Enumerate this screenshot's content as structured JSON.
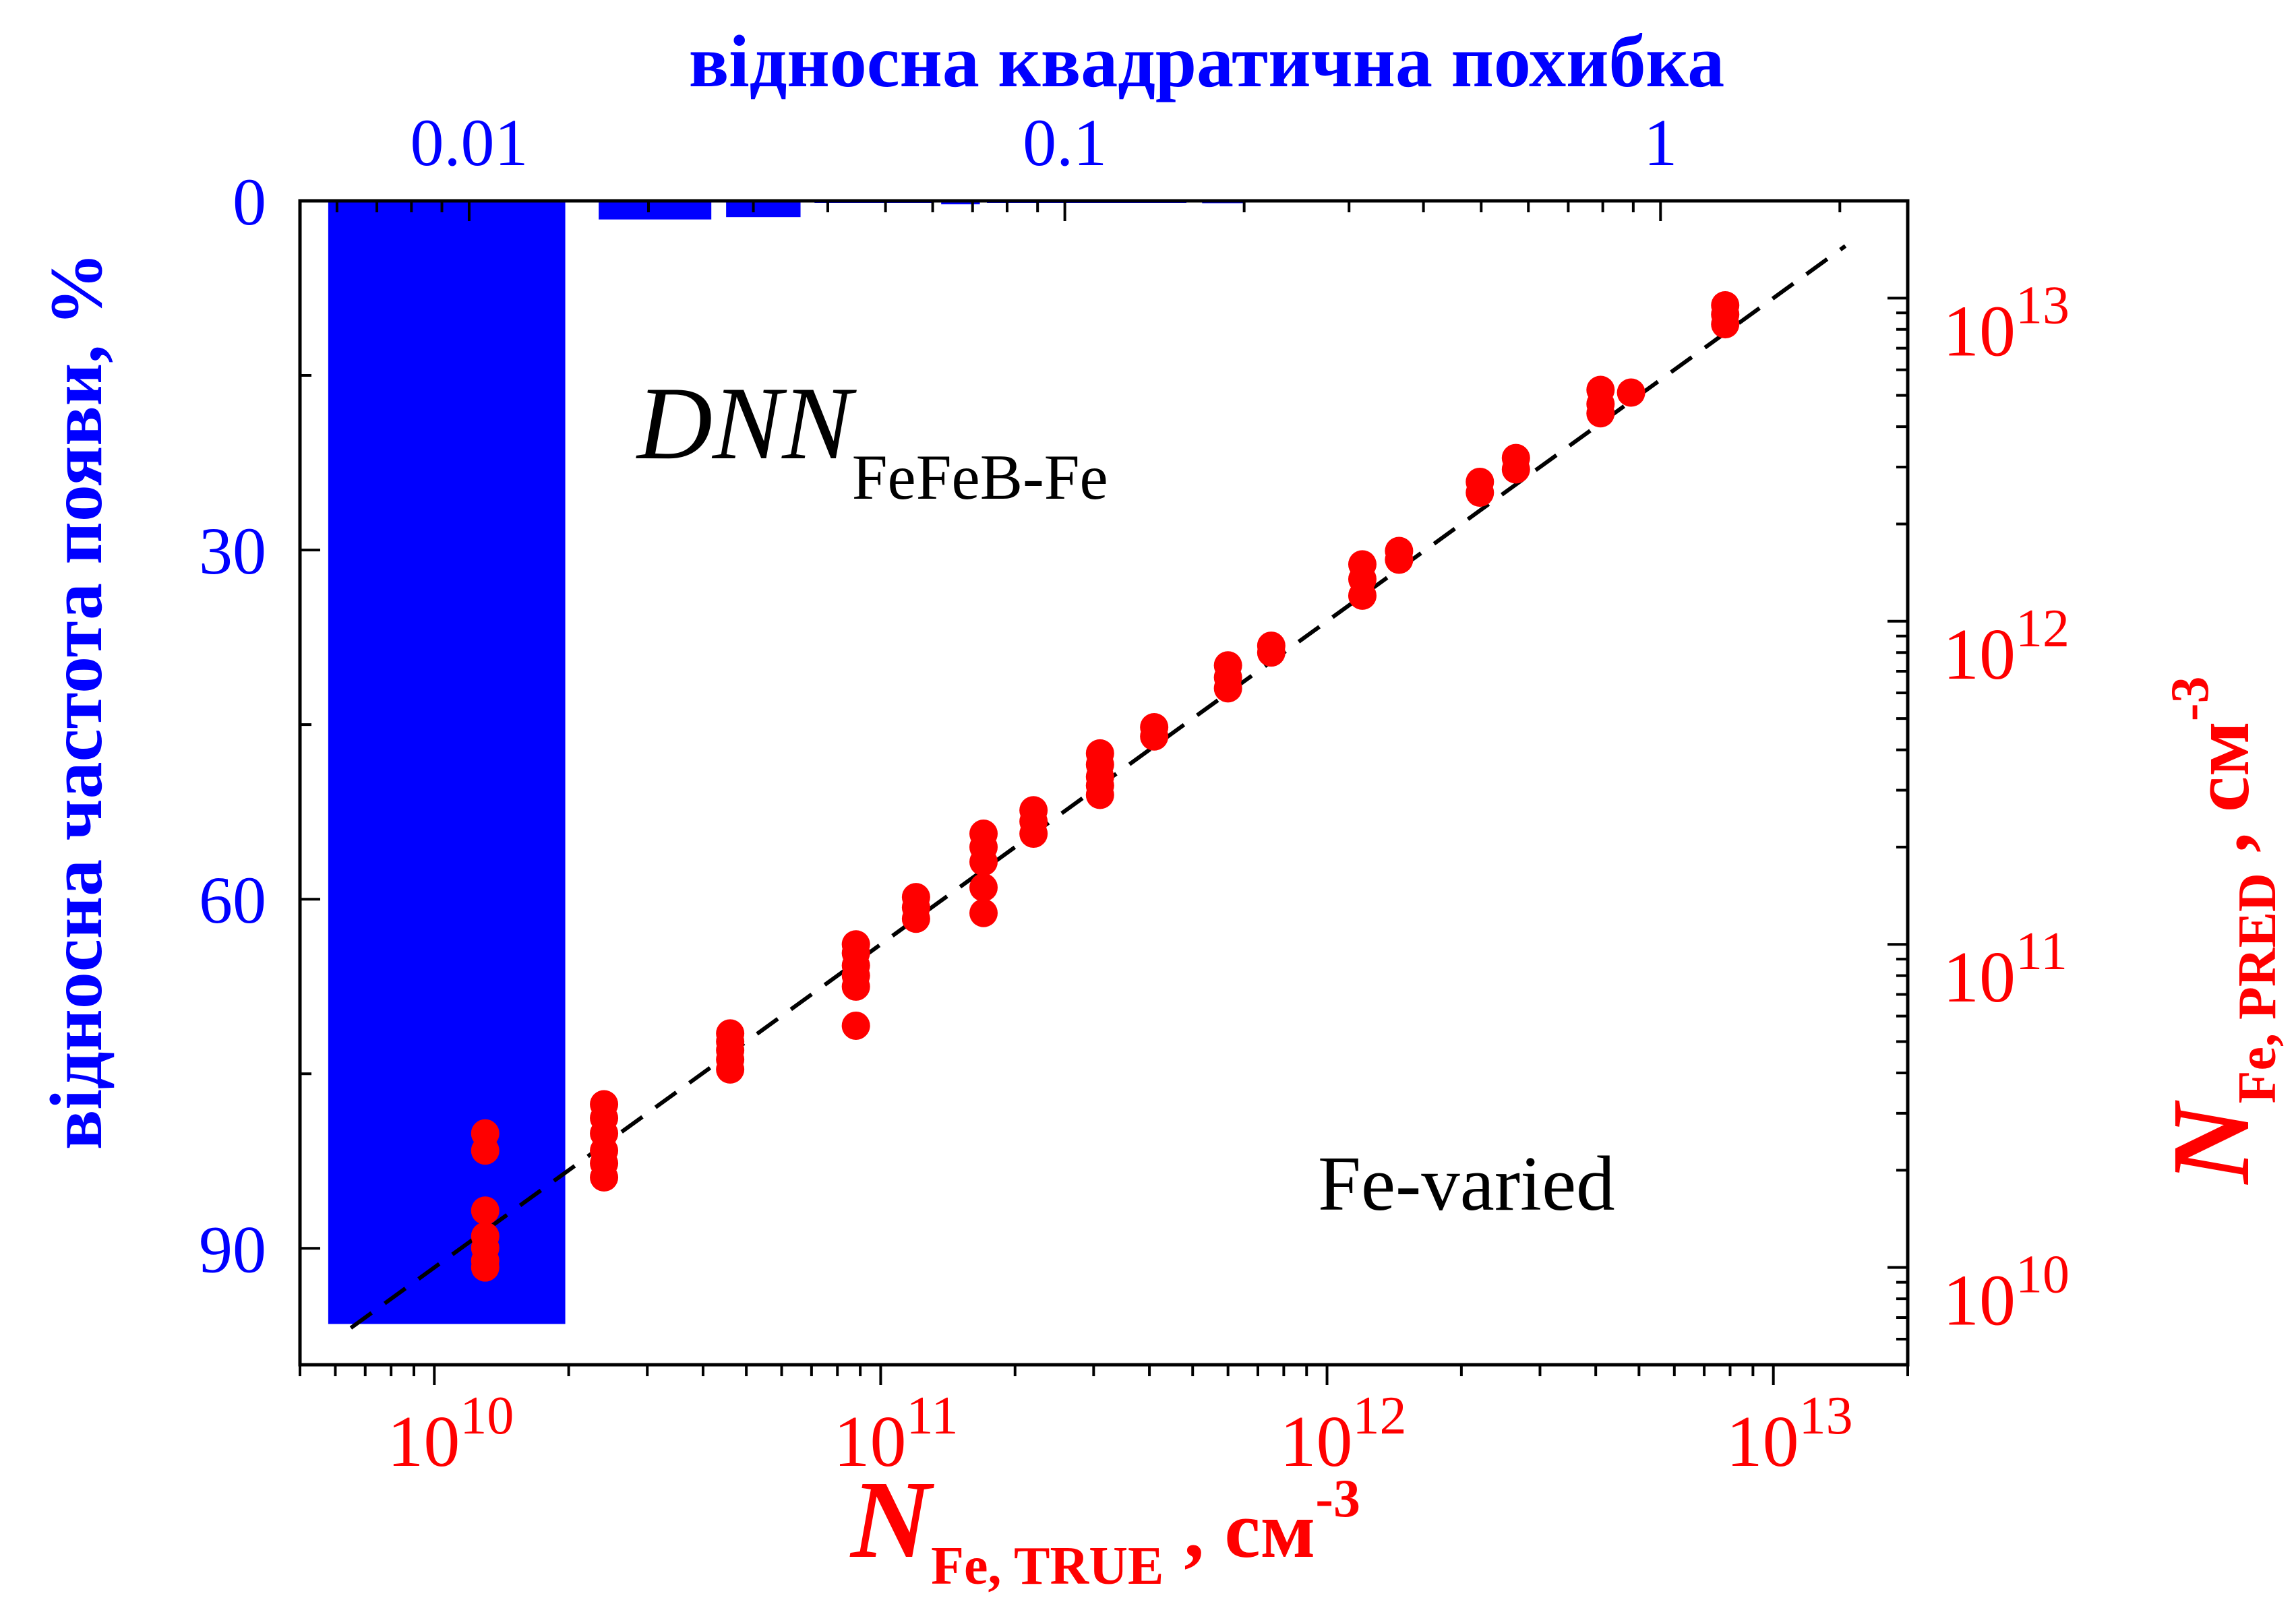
{
  "chart_data": {
    "type": "scatter",
    "series": [
      {
        "type": "scatter",
        "color": "#ff0000",
        "points": [
          {
            "x": 13000000000.0,
            "y": [
              26000000000.0,
              23000000000.0,
              15000000000.0,
              12500000000.0,
              11500000000.0,
              10500000000.0,
              10000000000.0
            ]
          },
          {
            "x": 24000000000.0,
            "y": [
              32000000000.0,
              29000000000.0,
              26000000000.0,
              23000000000.0,
              21000000000.0,
              19000000000.0
            ]
          },
          {
            "x": 46000000000.0,
            "y": [
              53000000000.0,
              50000000000.0,
              47000000000.0,
              44000000000.0,
              41000000000.0
            ]
          },
          {
            "x": 88000000000.0,
            "y": [
              100000000000.0,
              94000000000.0,
              86000000000.0,
              80000000000.0,
              74000000000.0,
              56000000000.0
            ]
          },
          {
            "x": 120000000000.0,
            "y": [
              140000000000.0,
              130000000000.0,
              120000000000.0
            ]
          },
          {
            "x": 170000000000.0,
            "y": [
              220000000000.0,
              200000000000.0,
              180000000000.0,
              150000000000.0,
              125000000000.0
            ]
          },
          {
            "x": 220000000000.0,
            "y": [
              260000000000.0,
              240000000000.0,
              220000000000.0
            ]
          },
          {
            "x": 310000000000.0,
            "y": [
              390000000000.0,
              360000000000.0,
              330000000000.0,
              310000000000.0,
              290000000000.0
            ]
          },
          {
            "x": 410000000000.0,
            "y": [
              470000000000.0,
              440000000000.0
            ]
          },
          {
            "x": 600000000000.0,
            "y": [
              730000000000.0,
              670000000000.0,
              620000000000.0
            ]
          },
          {
            "x": 750000000000.0,
            "y": [
              840000000000.0,
              800000000000.0
            ]
          },
          {
            "x": 1200000000000.0,
            "y": [
              1500000000000.0,
              1350000000000.0,
              1200000000000.0
            ]
          },
          {
            "x": 1450000000000.0,
            "y": [
              1650000000000.0,
              1550000000000.0
            ]
          },
          {
            "x": 2200000000000.0,
            "y": [
              2700000000000.0,
              2500000000000.0
            ]
          },
          {
            "x": 2650000000000.0,
            "y": [
              3200000000000.0,
              2950000000000.0
            ]
          },
          {
            "x": 4100000000000.0,
            "y": [
              5200000000000.0,
              4700000000000.0,
              4400000000000.0
            ]
          },
          {
            "x": 4800000000000.0,
            "y": [
              5100000000000.0
            ]
          },
          {
            "x": 7800000000000.0,
            "y": [
              9500000000000.0,
              8900000000000.0,
              8300000000000.0
            ]
          }
        ]
      },
      {
        "type": "line",
        "style": "dashed",
        "color": "#000000",
        "x": [
          6500000000.0,
          14500000000000.0
        ],
        "y": [
          6500000000.0,
          14500000000000.0
        ]
      },
      {
        "type": "bar",
        "axes": "top-left",
        "color": "#0000ff",
        "bins": [
          {
            "from": 0.0058,
            "to": 0.0145,
            "value": 96.5
          },
          {
            "from": 0.0165,
            "to": 0.0255,
            "value": 1.6
          },
          {
            "from": 0.027,
            "to": 0.036,
            "value": 1.4
          },
          {
            "from": 0.038,
            "to": 0.06,
            "value": 0.15
          },
          {
            "from": 0.062,
            "to": 0.072,
            "value": 0.3
          },
          {
            "from": 0.074,
            "to": 0.16,
            "value": 0.1
          },
          {
            "from": 0.17,
            "to": 0.2,
            "value": 0.2
          }
        ]
      }
    ],
    "axes": {
      "x_bottom": {
        "label_main": "N",
        "label_sub": "Fe, TRUE",
        "label_tail": " , см",
        "label_sup": "-3",
        "scale": "log",
        "range": [
          5000000000.0,
          20000000000000.0
        ],
        "ticks": [
          {
            "value": 10000000000.0,
            "base": "10",
            "exp": "10"
          },
          {
            "value": 100000000000.0,
            "base": "10",
            "exp": "11"
          },
          {
            "value": 1000000000000.0,
            "base": "10",
            "exp": "12"
          },
          {
            "value": 10000000000000.0,
            "base": "10",
            "exp": "13"
          }
        ],
        "color": "#ff0000"
      },
      "y_right": {
        "label_main": "N",
        "label_sub": "Fe, PRED",
        "label_tail": " , см",
        "label_sup": "-3",
        "scale": "log",
        "range": [
          5000000000.0,
          20000000000000.0
        ],
        "ticks": [
          {
            "value": 10000000000.0,
            "base": "10",
            "exp": "10"
          },
          {
            "value": 100000000000.0,
            "base": "10",
            "exp": "11"
          },
          {
            "value": 1000000000000.0,
            "base": "10",
            "exp": "12"
          },
          {
            "value": 10000000000000.0,
            "base": "10",
            "exp": "13"
          }
        ],
        "color": "#ff0000"
      },
      "x_top": {
        "label": "відносна квадратична похибка",
        "scale": "log",
        "range": [
          0.0052,
          2.6
        ],
        "ticks": [
          {
            "value": 0.01,
            "label": "0.01"
          },
          {
            "value": 0.1,
            "label": "0.1"
          },
          {
            "value": 1,
            "label": "1"
          }
        ],
        "color": "#0000ff"
      },
      "y_left": {
        "label": "відносна частота появи, %",
        "scale": "linear",
        "inverted": true,
        "range": [
          0,
          100
        ],
        "ticks": [
          {
            "value": 0,
            "label": "0"
          },
          {
            "value": 30,
            "label": "30"
          },
          {
            "value": 60,
            "label": "60"
          },
          {
            "value": 90,
            "label": "90"
          }
        ],
        "color": "#0000ff"
      }
    },
    "annotations": {
      "dnn_main": "DNN",
      "dnn_sub": "FeFeB-Fe",
      "case_label": "Fe-varied"
    },
    "legend": "none",
    "grid": false
  }
}
